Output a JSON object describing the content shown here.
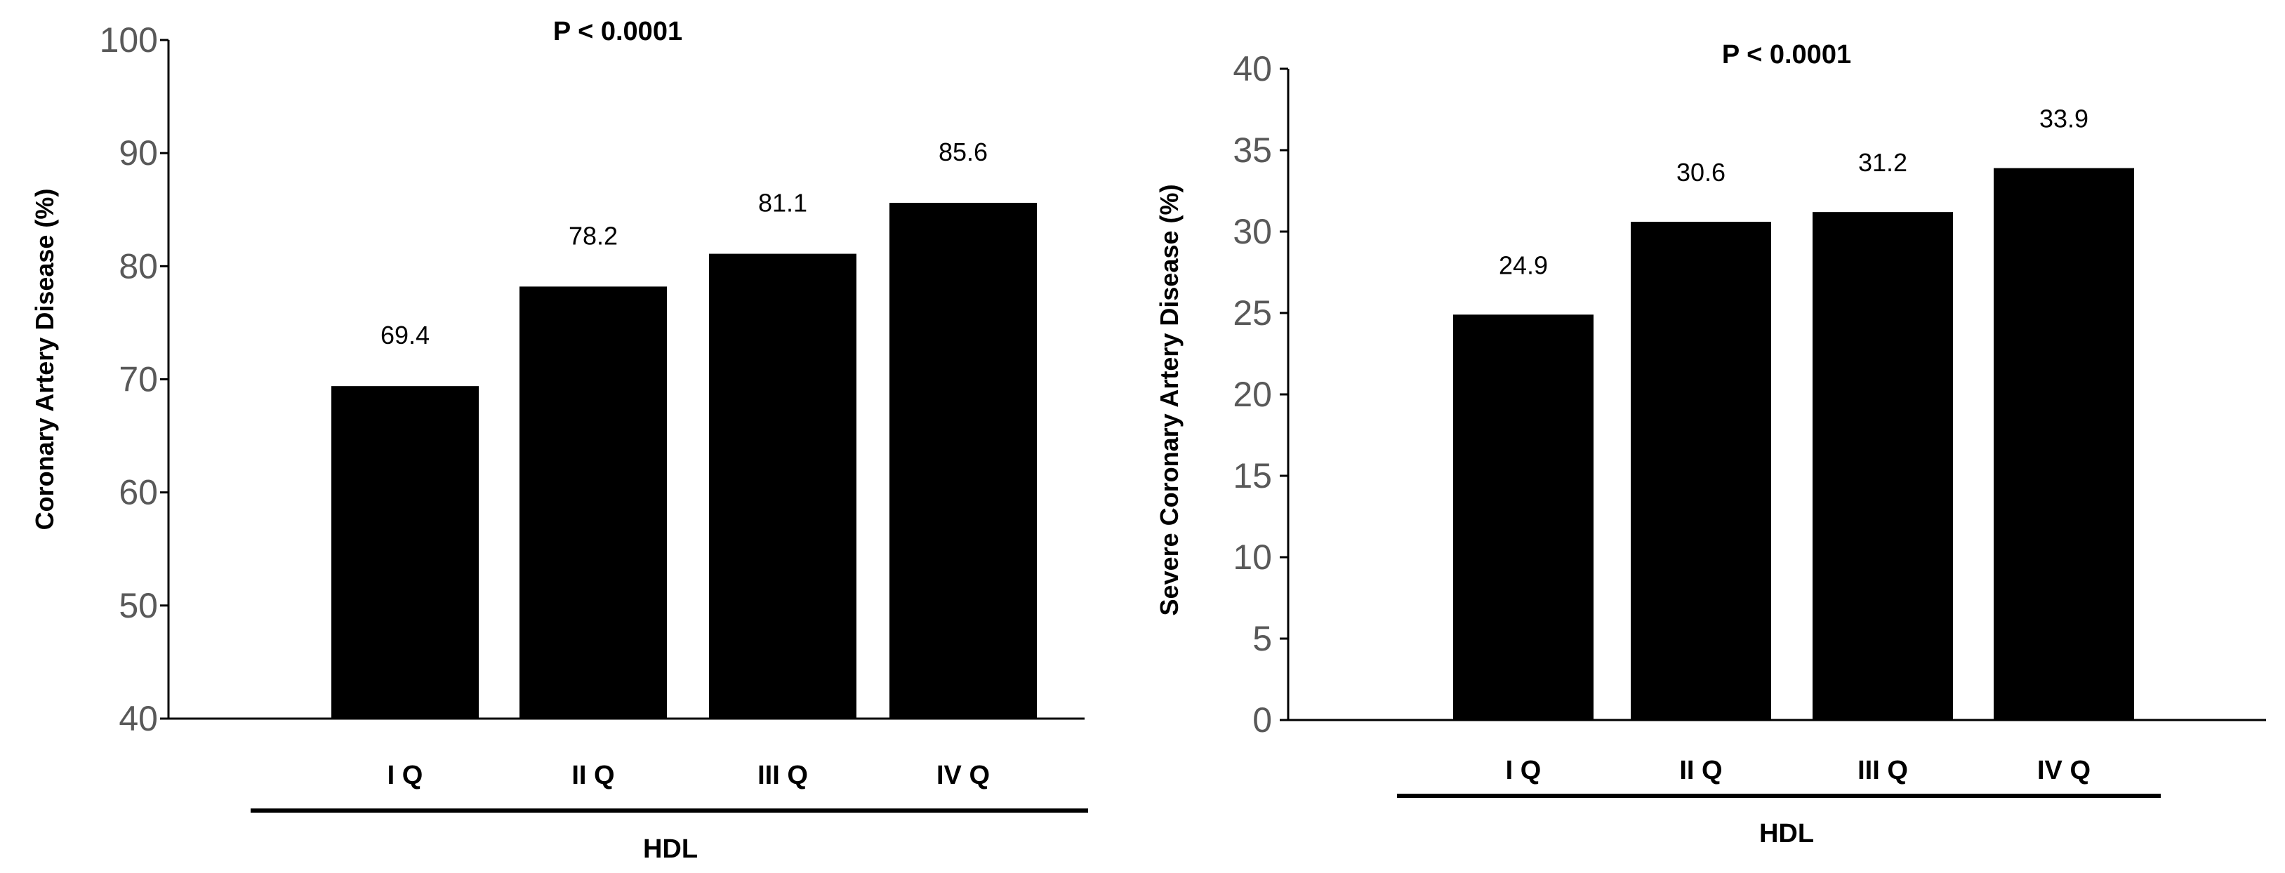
{
  "chart_data": [
    {
      "type": "bar",
      "categories": [
        "I Q",
        "II Q",
        "III Q",
        "IV Q"
      ],
      "values": [
        69.4,
        78.2,
        81.1,
        85.6
      ],
      "value_labels": [
        "69.4",
        "78.2",
        "81.1",
        "85.6"
      ],
      "ylabel": "Coronary  Artery  Disease  (%)",
      "annotation": "P < 0.0001",
      "group_label": "HDL",
      "ylim": [
        40,
        100
      ],
      "yticks": [
        40,
        50,
        60,
        70,
        80,
        90,
        100
      ],
      "bar_color": "#000000",
      "grid": false
    },
    {
      "type": "bar",
      "categories": [
        "I Q",
        "II Q",
        "III Q",
        "IV Q"
      ],
      "values": [
        24.9,
        30.6,
        31.2,
        33.9
      ],
      "value_labels": [
        "24.9",
        "30.6",
        "31.2",
        "33.9"
      ],
      "ylabel": "Severe Coronary  Artery Disease  (%)",
      "annotation": "P < 0.0001",
      "group_label": "HDL",
      "ylim": [
        0,
        40
      ],
      "yticks": [
        0,
        5,
        10,
        15,
        20,
        25,
        30,
        35,
        40
      ],
      "bar_color": "#000000",
      "grid": false
    }
  ]
}
